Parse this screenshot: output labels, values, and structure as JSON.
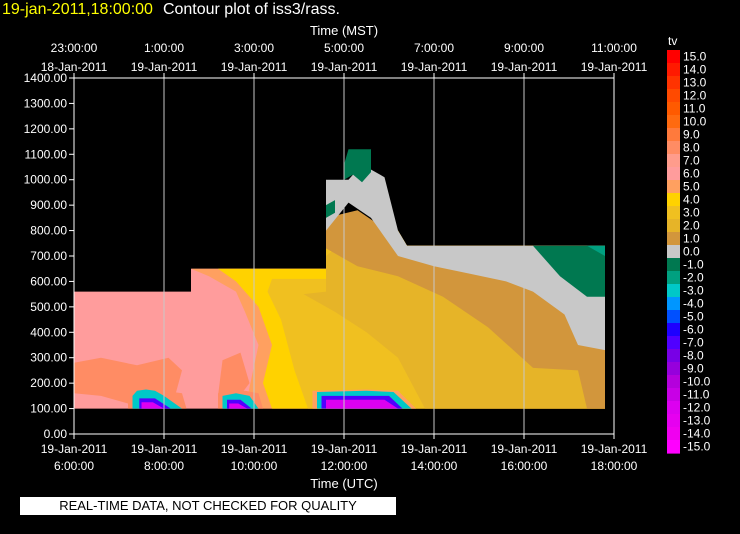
{
  "header": {
    "date": "19-jan-2011,18:00:00",
    "title": "Contour plot of iss3/rass."
  },
  "footer": {
    "qc_note": "REAL-TIME DATA, NOT CHECKED FOR QUALITY"
  },
  "chart_data": {
    "type": "heatmap",
    "title": "Contour plot of iss3/rass.",
    "top_axis_label": "Time (MST)",
    "bottom_axis_label": "Time (UTC)",
    "ylim": [
      0,
      1400
    ],
    "y_ticks": [
      "0.00",
      "100.00",
      "200.00",
      "300.00",
      "400.00",
      "500.00",
      "600.00",
      "700.00",
      "800.00",
      "900.00",
      "1000.00",
      "1100.00",
      "1200.00",
      "1300.00",
      "1400.00"
    ],
    "x_range_hours": [
      6,
      18
    ],
    "bottom_ticks": [
      {
        "hour": 6,
        "date": "19-Jan-2011",
        "time": "6:00:00"
      },
      {
        "hour": 8,
        "date": "19-Jan-2011",
        "time": "8:00:00"
      },
      {
        "hour": 10,
        "date": "19-Jan-2011",
        "time": "10:00:00"
      },
      {
        "hour": 12,
        "date": "19-Jan-2011",
        "time": "12:00:00"
      },
      {
        "hour": 14,
        "date": "19-Jan-2011",
        "time": "14:00:00"
      },
      {
        "hour": 16,
        "date": "19-Jan-2011",
        "time": "16:00:00"
      },
      {
        "hour": 18,
        "date": "19-Jan-2011",
        "time": "18:00:00"
      }
    ],
    "top_ticks": [
      {
        "hour": 6,
        "time": "23:00:00",
        "date": "18-Jan-2011"
      },
      {
        "hour": 8,
        "time": "1:00:00",
        "date": "19-Jan-2011"
      },
      {
        "hour": 10,
        "time": "3:00:00",
        "date": "19-Jan-2011"
      },
      {
        "hour": 12,
        "time": "5:00:00",
        "date": "19-Jan-2011"
      },
      {
        "hour": 14,
        "time": "7:00:00",
        "date": "19-Jan-2011"
      },
      {
        "hour": 16,
        "time": "9:00:00",
        "date": "19-Jan-2011"
      },
      {
        "hour": 18,
        "time": "11:00:00",
        "date": "19-Jan-2011"
      }
    ],
    "grid": "vertical",
    "colorbar": {
      "label": "tv",
      "levels": [
        {
          "label": "15.0",
          "color": "#ff0000"
        },
        {
          "label": "14.0",
          "color": "#ff1a00"
        },
        {
          "label": "13.0",
          "color": "#ff3300"
        },
        {
          "label": "12.0",
          "color": "#ff4a00"
        },
        {
          "label": "11.0",
          "color": "#ff5a00"
        },
        {
          "label": "10.0",
          "color": "#ff6a10"
        },
        {
          "label": "9.0",
          "color": "#ff7a3c"
        },
        {
          "label": "8.0",
          "color": "#ff8c64"
        },
        {
          "label": "7.0",
          "color": "#ff9c8c"
        },
        {
          "label": "6.0",
          "color": "#ff9c9c"
        },
        {
          "label": "5.0",
          "color": "#ffa060"
        },
        {
          "label": "4.0",
          "color": "#ffd200"
        },
        {
          "label": "3.0",
          "color": "#f0c020"
        },
        {
          "label": "2.0",
          "color": "#e6b428"
        },
        {
          "label": "1.0",
          "color": "#d2963c"
        },
        {
          "label": "0.0",
          "color": "#c8c8c8"
        },
        {
          "label": "-1.0",
          "color": "#007850"
        },
        {
          "label": "-2.0",
          "color": "#00a080"
        },
        {
          "label": "-3.0",
          "color": "#00c8c8"
        },
        {
          "label": "-4.0",
          "color": "#0096ff"
        },
        {
          "label": "-5.0",
          "color": "#0050ff"
        },
        {
          "label": "-6.0",
          "color": "#1e00ff"
        },
        {
          "label": "-7.0",
          "color": "#5000ff"
        },
        {
          "label": "-8.0",
          "color": "#7800e6"
        },
        {
          "label": "-9.0",
          "color": "#9600dc"
        },
        {
          "label": "-10.0",
          "color": "#b400dc"
        },
        {
          "label": "-11.0",
          "color": "#c800e6"
        },
        {
          "label": "-12.0",
          "color": "#dc00f0"
        },
        {
          "label": "-13.0",
          "color": "#e600f0"
        },
        {
          "label": "-14.0",
          "color": "#f000f0"
        },
        {
          "label": "-15.0",
          "color": "#ff00ff"
        }
      ]
    },
    "regions": [
      {
        "level": "6.0",
        "points": [
          [
            6,
            560
          ],
          [
            8.6,
            560
          ],
          [
            8.6,
            650
          ],
          [
            11.6,
            650
          ],
          [
            11.6,
            800
          ],
          [
            13.2,
            800
          ],
          [
            13.4,
            740
          ],
          [
            17.8,
            740
          ],
          [
            17.8,
            100
          ],
          [
            6,
            100
          ]
        ]
      },
      {
        "level": "8.0",
        "points": [
          [
            6,
            280
          ],
          [
            6.6,
            300
          ],
          [
            7.4,
            270
          ],
          [
            8.1,
            300
          ],
          [
            8.4,
            250
          ],
          [
            8.2,
            120
          ],
          [
            7.2,
            120
          ],
          [
            6.6,
            150
          ],
          [
            6,
            160
          ]
        ]
      },
      {
        "level": "8.0",
        "points": [
          [
            9.3,
            290
          ],
          [
            9.7,
            320
          ],
          [
            9.9,
            200
          ],
          [
            9.6,
            130
          ],
          [
            9.2,
            150
          ]
        ]
      },
      {
        "level": "5.0",
        "points": [
          [
            8.6,
            650
          ],
          [
            11.6,
            650
          ],
          [
            11.6,
            100
          ],
          [
            9.8,
            100
          ],
          [
            10.1,
            350
          ],
          [
            9.8,
            480
          ],
          [
            9.6,
            560
          ],
          [
            9.0,
            620
          ]
        ]
      },
      {
        "level": "4.0",
        "points": [
          [
            9.2,
            650
          ],
          [
            11.6,
            650
          ],
          [
            11.6,
            800
          ],
          [
            13.2,
            800
          ],
          [
            13.4,
            740
          ],
          [
            17.8,
            740
          ],
          [
            17.8,
            100
          ],
          [
            10.4,
            100
          ],
          [
            10.2,
            200
          ],
          [
            10.4,
            350
          ],
          [
            10.1,
            500
          ],
          [
            9.6,
            600
          ]
        ]
      },
      {
        "level": "3.0",
        "points": [
          [
            10.4,
            610
          ],
          [
            11.6,
            610
          ],
          [
            11.6,
            800
          ],
          [
            13.2,
            800
          ],
          [
            13.4,
            740
          ],
          [
            17.8,
            740
          ],
          [
            17.8,
            100
          ],
          [
            11.2,
            100
          ],
          [
            10.9,
            250
          ],
          [
            10.6,
            450
          ],
          [
            10.3,
            560
          ]
        ]
      },
      {
        "level": "2.0",
        "points": [
          [
            11.1,
            550
          ],
          [
            11.6,
            560
          ],
          [
            11.6,
            700
          ],
          [
            12.3,
            800
          ],
          [
            13.4,
            740
          ],
          [
            17.8,
            740
          ],
          [
            17.8,
            100
          ],
          [
            13.8,
            100
          ],
          [
            13.2,
            300
          ],
          [
            12.5,
            400
          ],
          [
            11.8,
            480
          ]
        ]
      },
      {
        "level": "1.0",
        "points": [
          [
            11.6,
            730
          ],
          [
            11.6,
            850
          ],
          [
            12.3,
            880
          ],
          [
            12.8,
            820
          ],
          [
            13.4,
            740
          ],
          [
            17.8,
            740
          ],
          [
            17.8,
            100
          ],
          [
            17.4,
            100
          ],
          [
            17.2,
            250
          ],
          [
            16.2,
            260
          ],
          [
            15.2,
            420
          ],
          [
            14.2,
            540
          ],
          [
            13.2,
            620
          ],
          [
            12.3,
            660
          ]
        ]
      },
      {
        "level": "0.0",
        "points": [
          [
            11.6,
            800
          ],
          [
            11.6,
            1000
          ],
          [
            12.1,
            1000
          ],
          [
            12.4,
            1060
          ],
          [
            12.9,
            1010
          ],
          [
            13.2,
            800
          ],
          [
            13.4,
            740
          ],
          [
            17.8,
            740
          ],
          [
            17.8,
            330
          ],
          [
            17.2,
            350
          ],
          [
            16.9,
            470
          ],
          [
            16.2,
            560
          ],
          [
            15.6,
            600
          ],
          [
            14.8,
            630
          ],
          [
            14.0,
            660
          ],
          [
            13.2,
            700
          ],
          [
            12.6,
            850
          ],
          [
            12.1,
            910
          ]
        ]
      },
      {
        "level": "-1.0",
        "points": [
          [
            11.6,
            900
          ],
          [
            11.6,
            850
          ],
          [
            11.8,
            870
          ],
          [
            11.8,
            920
          ]
        ]
      },
      {
        "level": "-1.0",
        "points": [
          [
            12.0,
            1000
          ],
          [
            12.0,
            1060
          ],
          [
            12.1,
            1120
          ],
          [
            12.6,
            1120
          ],
          [
            12.6,
            1030
          ],
          [
            12.4,
            990
          ],
          [
            12.2,
            1020
          ]
        ]
      },
      {
        "level": "-1.0",
        "points": [
          [
            16.2,
            740
          ],
          [
            17.8,
            740
          ],
          [
            17.8,
            540
          ],
          [
            17.4,
            540
          ],
          [
            16.8,
            620
          ]
        ]
      },
      {
        "level": "-2.0",
        "points": [
          [
            17.4,
            740
          ],
          [
            17.8,
            740
          ],
          [
            17.8,
            700
          ]
        ]
      },
      {
        "level": "8.0",
        "points": [
          [
            7.2,
            100
          ],
          [
            8.5,
            100
          ],
          [
            8.4,
            160
          ],
          [
            8.0,
            170
          ],
          [
            7.6,
            180
          ],
          [
            7.2,
            170
          ]
        ]
      },
      {
        "level": "-3.0",
        "points": [
          [
            7.3,
            100
          ],
          [
            8.4,
            100
          ],
          [
            8.0,
            150
          ],
          [
            7.8,
            170
          ],
          [
            7.6,
            175
          ],
          [
            7.4,
            170
          ],
          [
            7.3,
            150
          ]
        ]
      },
      {
        "level": "-7.0",
        "points": [
          [
            7.45,
            100
          ],
          [
            8.15,
            100
          ],
          [
            7.8,
            140
          ],
          [
            7.45,
            140
          ]
        ]
      },
      {
        "level": "-12.0",
        "points": [
          [
            7.5,
            100
          ],
          [
            8.0,
            100
          ],
          [
            7.75,
            125
          ],
          [
            7.5,
            125
          ]
        ]
      },
      {
        "level": "8.0",
        "points": [
          [
            9.2,
            100
          ],
          [
            10.2,
            100
          ],
          [
            10.1,
            160
          ],
          [
            9.8,
            170
          ],
          [
            9.2,
            160
          ]
        ]
      },
      {
        "level": "-3.0",
        "points": [
          [
            9.3,
            100
          ],
          [
            10.1,
            100
          ],
          [
            9.9,
            150
          ],
          [
            9.6,
            160
          ],
          [
            9.3,
            150
          ]
        ]
      },
      {
        "level": "-7.0",
        "points": [
          [
            9.4,
            100
          ],
          [
            9.95,
            100
          ],
          [
            9.7,
            135
          ],
          [
            9.4,
            135
          ]
        ]
      },
      {
        "level": "-12.0",
        "points": [
          [
            9.45,
            100
          ],
          [
            9.85,
            100
          ],
          [
            9.65,
            120
          ],
          [
            9.45,
            120
          ]
        ]
      },
      {
        "level": "5.0",
        "points": [
          [
            11.3,
            100
          ],
          [
            13.6,
            100
          ],
          [
            13.2,
            170
          ],
          [
            12.5,
            175
          ],
          [
            11.3,
            170
          ]
        ]
      },
      {
        "level": "-3.0",
        "points": [
          [
            11.4,
            100
          ],
          [
            13.5,
            100
          ],
          [
            13.1,
            165
          ],
          [
            12.5,
            170
          ],
          [
            11.4,
            165
          ]
        ]
      },
      {
        "level": "-7.0",
        "points": [
          [
            11.5,
            100
          ],
          [
            13.3,
            100
          ],
          [
            13.0,
            150
          ],
          [
            11.5,
            150
          ]
        ]
      },
      {
        "level": "-12.0",
        "points": [
          [
            11.6,
            100
          ],
          [
            13.2,
            100
          ],
          [
            12.9,
            135
          ],
          [
            11.6,
            135
          ]
        ]
      }
    ]
  }
}
